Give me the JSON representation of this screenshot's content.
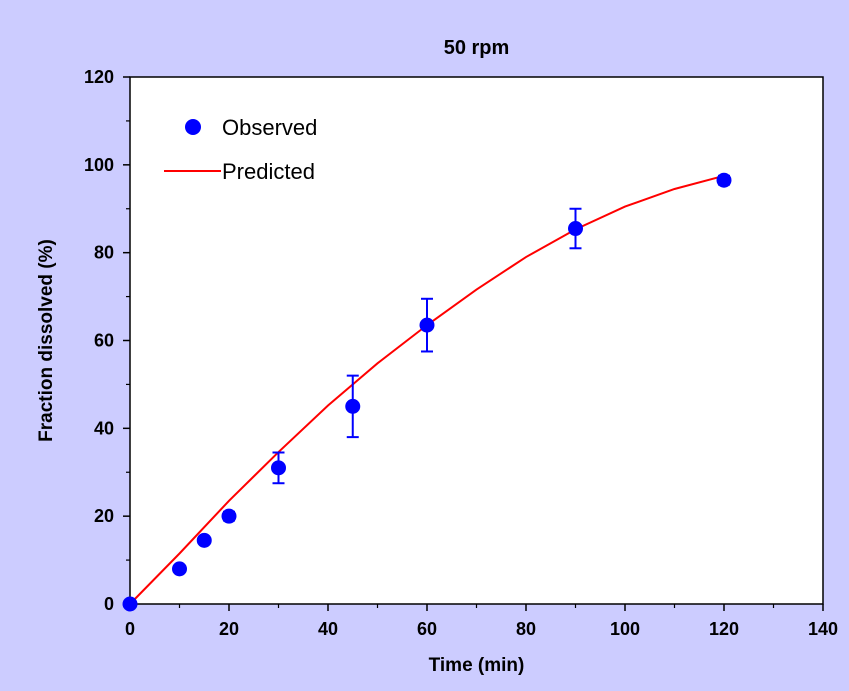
{
  "chart_data": {
    "type": "scatter",
    "title": "50 rpm",
    "xlabel": "Time (min)",
    "ylabel": "Fraction dissolved (%)",
    "xlim": [
      0,
      140
    ],
    "ylim": [
      0,
      120
    ],
    "x_ticks": [
      0,
      20,
      40,
      60,
      80,
      100,
      120,
      140
    ],
    "y_ticks": [
      0,
      20,
      40,
      60,
      80,
      100,
      120
    ],
    "grid": false,
    "legend_position": "top-left",
    "series": [
      {
        "name": "Observed",
        "kind": "scatter",
        "color": "#0000ff",
        "x": [
          0,
          10,
          15,
          20,
          30,
          45,
          60,
          90,
          120
        ],
        "y": [
          0,
          8,
          14.5,
          20,
          31,
          45,
          63.5,
          85.5,
          96.5
        ],
        "error": [
          0,
          0,
          0,
          1,
          3.5,
          7,
          6,
          4.5,
          1
        ]
      },
      {
        "name": "Predicted",
        "kind": "line",
        "color": "#ff0000",
        "x": [
          0,
          10,
          20,
          30,
          40,
          50,
          60,
          70,
          80,
          90,
          100,
          110,
          120
        ],
        "y": [
          0,
          11.5,
          23.5,
          34.6,
          45.2,
          54.8,
          63.5,
          71.6,
          79.0,
          85.3,
          90.5,
          94.5,
          97.5
        ]
      }
    ]
  }
}
